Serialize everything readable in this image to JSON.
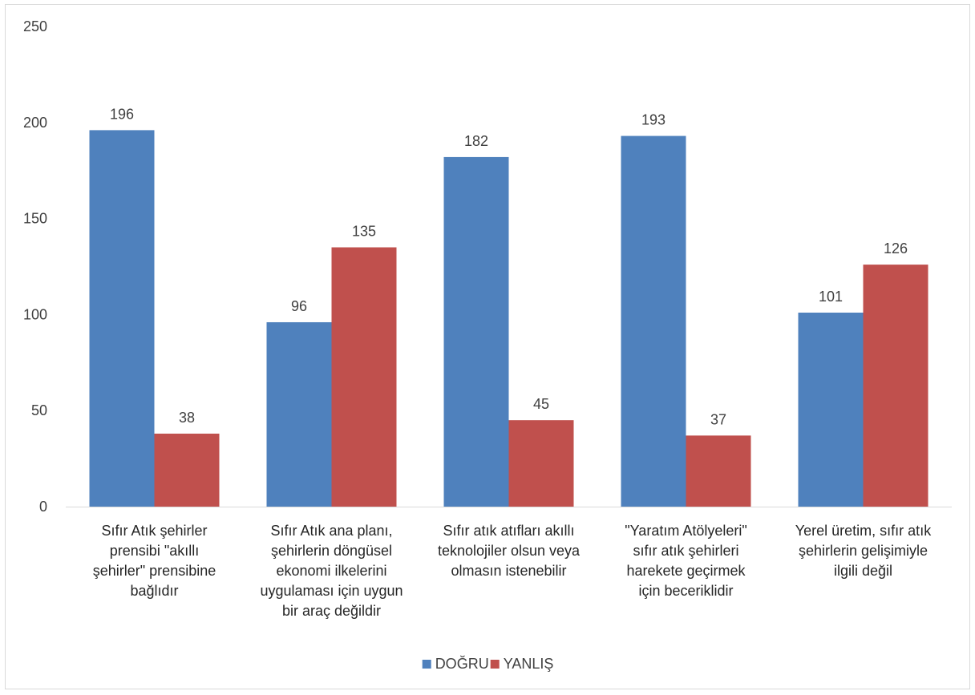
{
  "chart_data": {
    "type": "bar",
    "categories": [
      [
        "Sıfır Atık şehirler",
        "prensibi \"akıllı",
        "şehirler\" prensibine",
        "bağlıdır"
      ],
      [
        "Sıfır Atık ana planı,",
        "şehirlerin döngüsel",
        "ekonomi ilkelerini",
        "uygulaması için uygun",
        "bir araç değildir"
      ],
      [
        "Sıfır atık atıfları akıllı",
        "teknolojiler olsun veya",
        "olmasın istenebilir"
      ],
      [
        "\"Yaratım Atölyeleri\"",
        "sıfır atık şehirleri",
        "harekete geçirmek",
        "için beceriklidir"
      ],
      [
        "Yerel üretim, sıfır atık",
        "şehirlerin gelişimiyle",
        "ilgili değil"
      ]
    ],
    "series": [
      {
        "name": "DOĞRU",
        "color": "#4f81bd",
        "values": [
          196,
          96,
          182,
          193,
          101
        ]
      },
      {
        "name": "YANLIŞ",
        "color": "#c0504d",
        "values": [
          38,
          135,
          45,
          37,
          126
        ]
      }
    ],
    "ylim": [
      0,
      250
    ],
    "yticks": [
      "0",
      "50",
      "100",
      "150",
      "200",
      "250"
    ],
    "grid": false,
    "legend": "bottom",
    "title": "",
    "xlabel": "",
    "ylabel": ""
  }
}
